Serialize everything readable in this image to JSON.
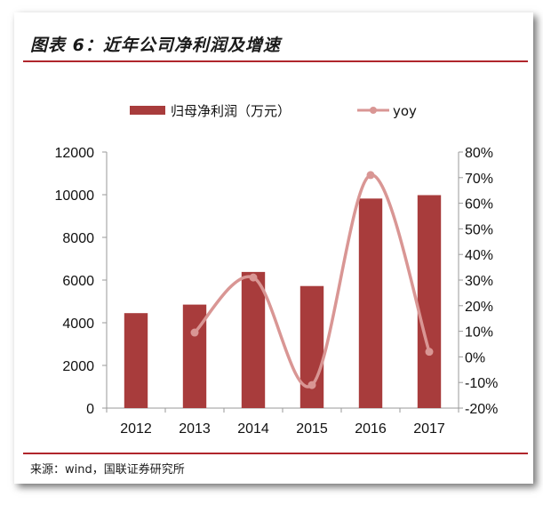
{
  "figure": {
    "title": "图表 6：近年公司净利润及增速",
    "source": "来源：wind，国联证券研究所"
  },
  "chart_data": {
    "type": "bar",
    "categories": [
      "2012",
      "2013",
      "2014",
      "2015",
      "2016",
      "2017"
    ],
    "series": [
      {
        "name": "归母净利润（万元）",
        "type": "bar",
        "axis": "left",
        "color": "#a83c3c",
        "values": [
          4450,
          4850,
          6380,
          5720,
          9820,
          9980
        ]
      },
      {
        "name": "yoy",
        "type": "line",
        "axis": "right",
        "color": "#d99694",
        "values": [
          null,
          9.5,
          31,
          -11,
          71,
          2
        ]
      }
    ],
    "left_axis": {
      "ylim": [
        0,
        12000
      ],
      "ticks": [
        "0",
        "2000",
        "4000",
        "6000",
        "8000",
        "10000",
        "12000"
      ]
    },
    "right_axis": {
      "ylim": [
        -20,
        80
      ],
      "ticks": [
        "-20%",
        "-10%",
        "0%",
        "10%",
        "20%",
        "30%",
        "40%",
        "50%",
        "60%",
        "70%",
        "80%"
      ]
    },
    "legend_position": "top-center",
    "grid": false
  }
}
